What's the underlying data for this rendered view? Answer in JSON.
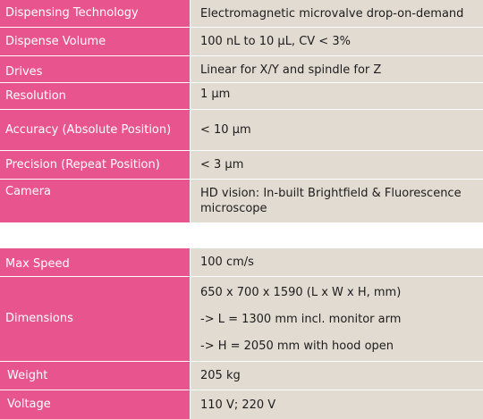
{
  "table1": {
    "rows": [
      {
        "label": "Dispensing Technology",
        "value": "Electromagnetic microvalve drop-on-demand"
      },
      {
        "label": "Dispense Volume",
        "value": "100 nL to 10 µL, CV < 3%"
      },
      {
        "label": "Drives",
        "value": "Linear for X/Y and spindle for Z"
      },
      {
        "label": "Resolution",
        "value": "1 µm"
      },
      {
        "label": "Accuracy (Absolute Position)",
        "value": "< 10 µm"
      },
      {
        "label": "Precision (Repeat Position)",
        "value": "< 3 µm"
      },
      {
        "label": "Camera",
        "value": "HD vision: In-built Brightfield & Fluorescence microscope"
      }
    ]
  },
  "table2": {
    "rows": [
      {
        "label": "Max Speed",
        "value": "100 cm/s"
      },
      {
        "label": "Dimensions",
        "values": [
          "650 x 700 x 1590 (L x W x H, mm)",
          "-> L = 1300 mm incl. monitor arm",
          "-> H = 2050 mm with hood open"
        ]
      },
      {
        "label": "Weight",
        "value": "205 kg"
      },
      {
        "label": "Voltage",
        "value": "110 V; 220 V"
      }
    ]
  }
}
